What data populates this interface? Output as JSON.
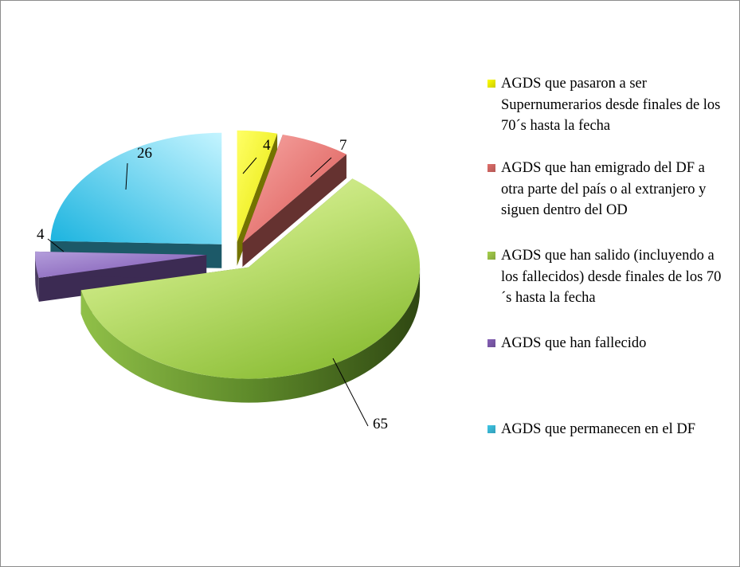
{
  "chart_data": {
    "type": "pie",
    "categories": [
      "AGDS que pasaron a ser Supernumerarios desde finales de los 70´s hasta la fecha",
      "AGDS que han emigrado del DF a otra parte del país o al extranjero y siguen dentro del OD",
      "AGDS que han salido (incluyendo a los fallecidos) desde finales de los 70´s hasta la fecha",
      "AGDS que han fallecido",
      "AGDS que permanecen en el DF"
    ],
    "values": [
      4,
      7,
      65,
      4,
      26
    ],
    "data_labels": [
      "4",
      "7",
      "65",
      "4",
      "26"
    ],
    "colors": [
      "#ffff00",
      "#e06e6a",
      "#a6d04c",
      "#8660b8",
      "#3ec6e6"
    ],
    "exploded": true,
    "three_d": true,
    "legend_position": "right",
    "title": ""
  }
}
